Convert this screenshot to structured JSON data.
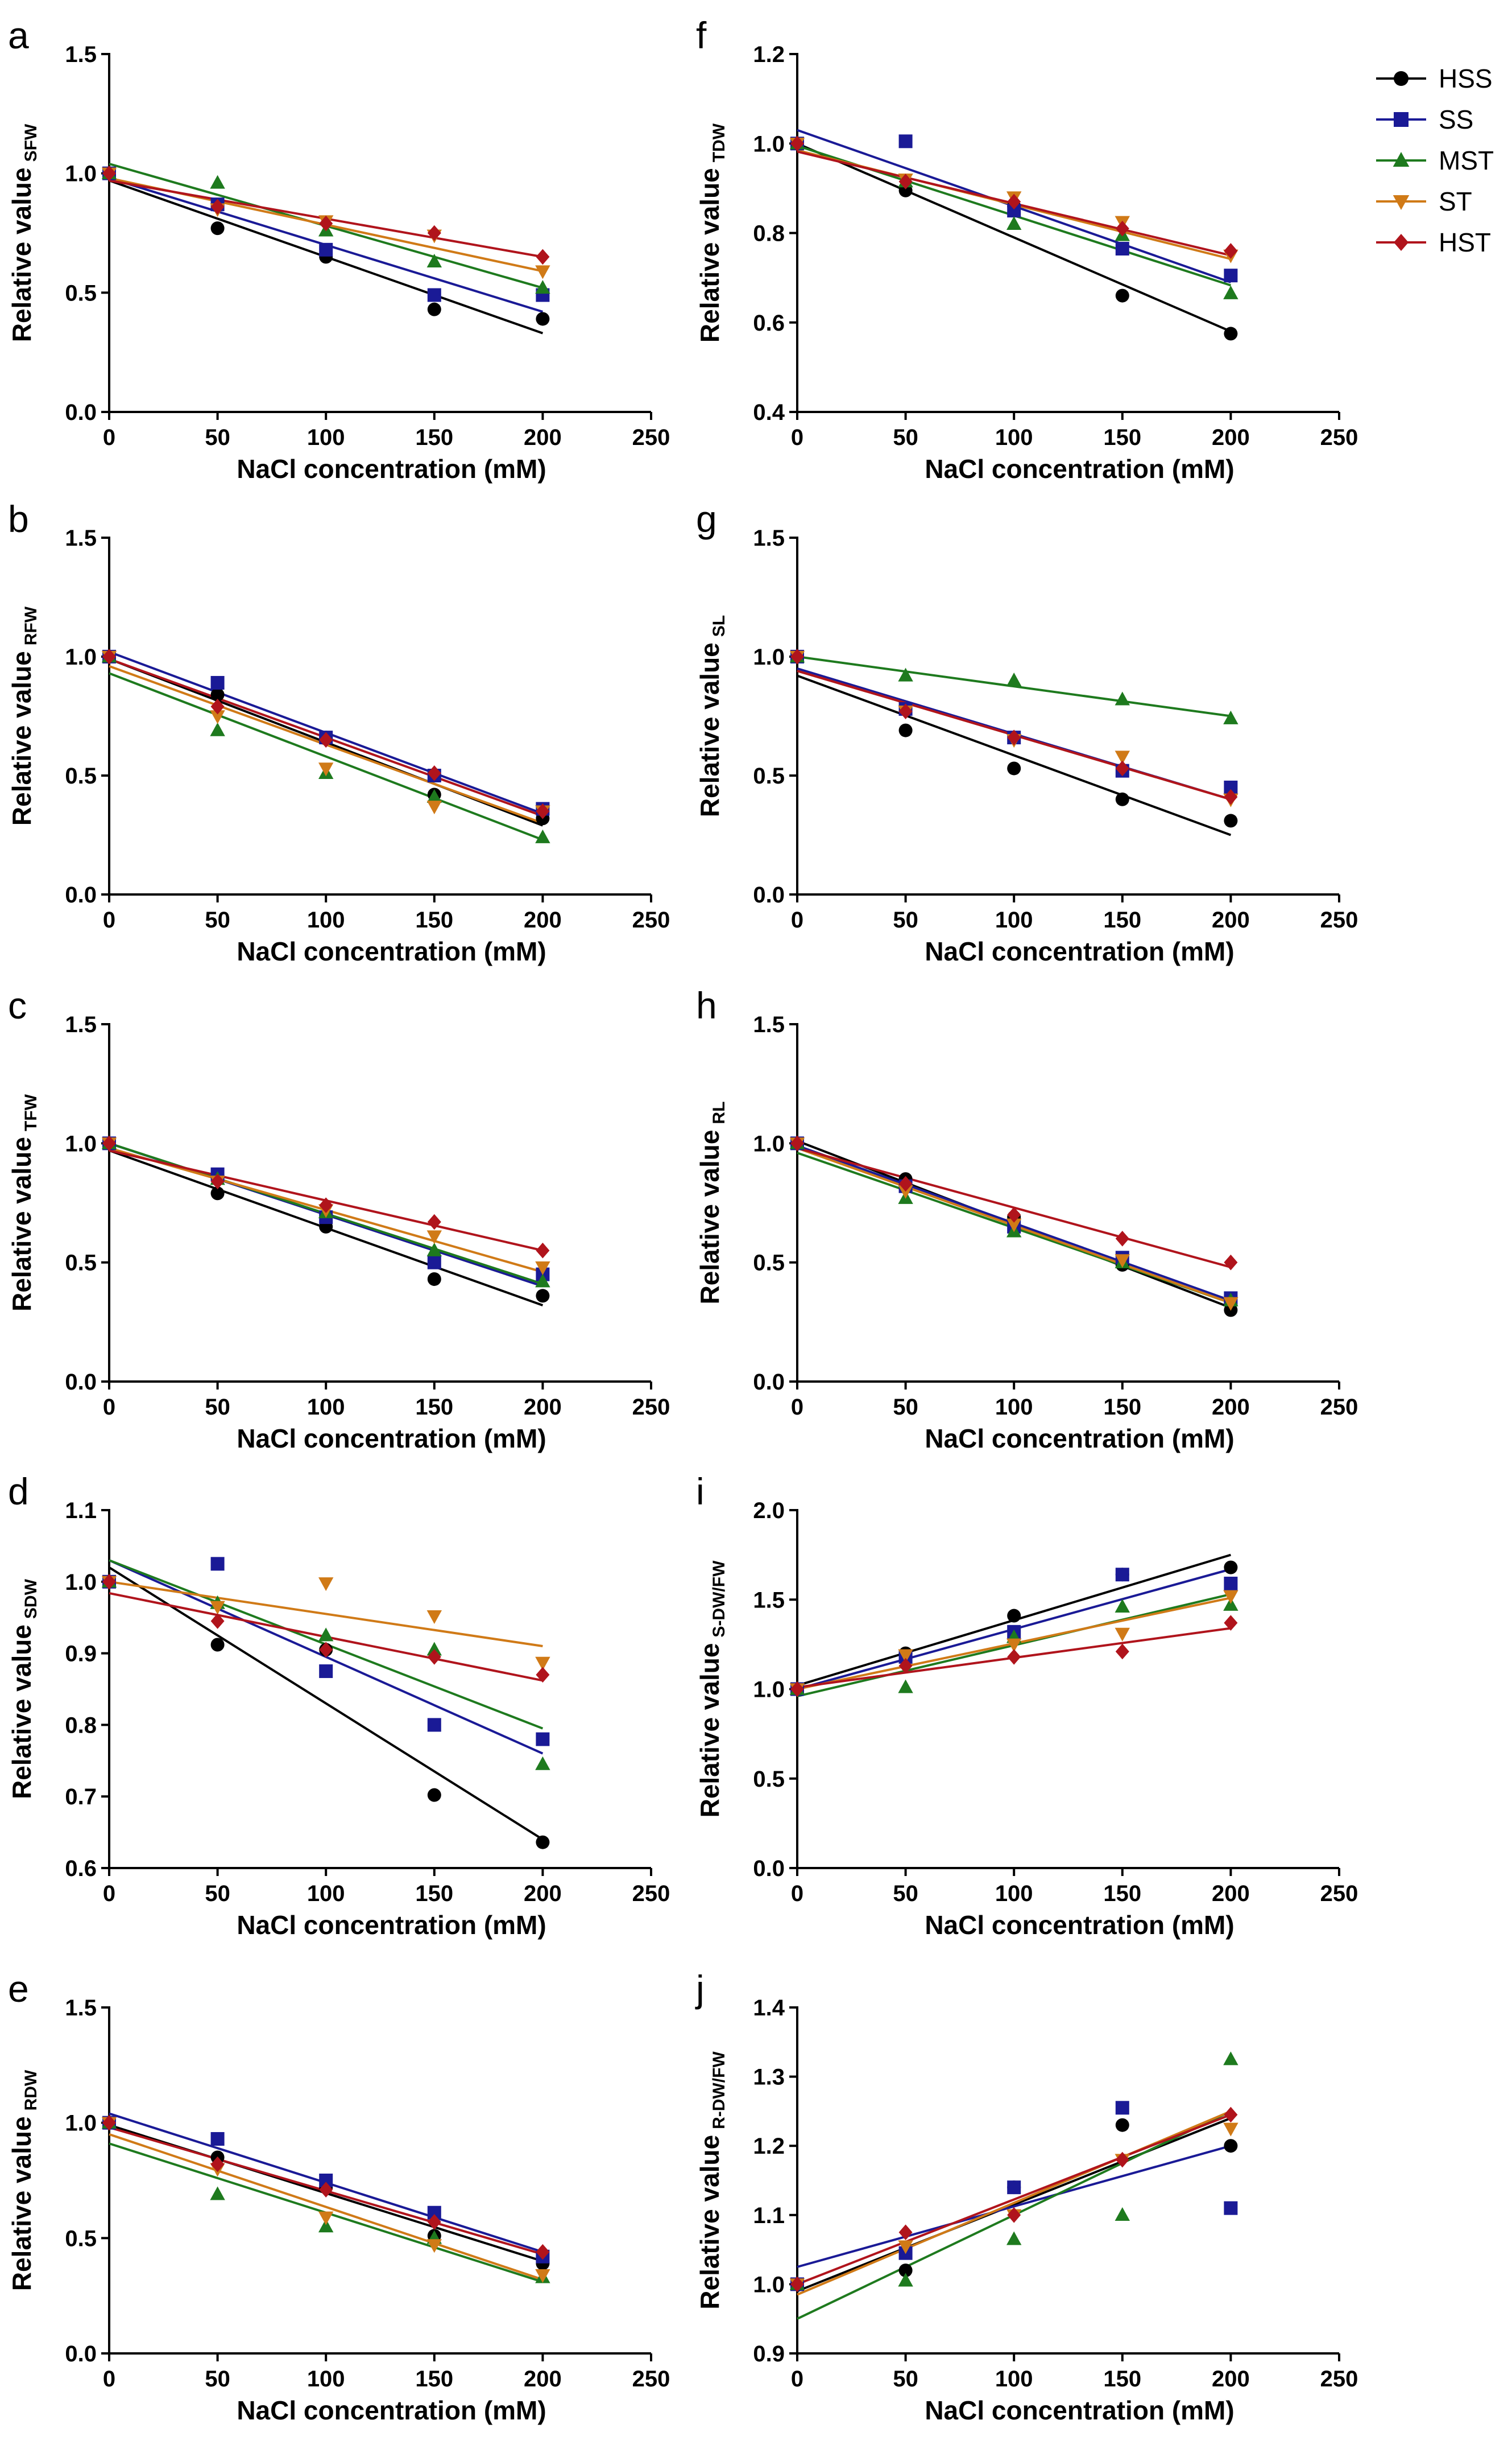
{
  "figure": {
    "legend_placement": "top-right"
  },
  "chart_data": [
    {
      "panel": "a",
      "type": "scatter",
      "ylabel": "Relative value",
      "ylabel_sub": "SFW",
      "xlabel": "NaCl concentration (mM)",
      "xlim": [
        0,
        250
      ],
      "xticks": [
        "0",
        "50",
        "100",
        "150",
        "200",
        "250"
      ],
      "ylim": [
        0,
        1.5
      ],
      "yticks": [
        "0.0",
        "0.5",
        "1.0",
        "1.5"
      ],
      "x": [
        0,
        50,
        100,
        150,
        200
      ],
      "series": [
        {
          "name": "HSS",
          "values": [
            1.0,
            0.77,
            0.65,
            0.43,
            0.39
          ],
          "fit": [
            0.97,
            0.33
          ]
        },
        {
          "name": "SS",
          "values": [
            1.0,
            0.87,
            0.68,
            0.49,
            0.49
          ],
          "fit": [
            0.98,
            0.42
          ]
        },
        {
          "name": "MST",
          "values": [
            1.0,
            0.96,
            0.76,
            0.63,
            0.52
          ],
          "fit": [
            1.04,
            0.52
          ]
        },
        {
          "name": "ST",
          "values": [
            1.0,
            0.85,
            0.8,
            0.74,
            0.59
          ],
          "fit": [
            0.98,
            0.59
          ]
        },
        {
          "name": "HST",
          "values": [
            1.0,
            0.86,
            0.79,
            0.75,
            0.65
          ],
          "fit": [
            0.97,
            0.65
          ]
        }
      ]
    },
    {
      "panel": "b",
      "type": "scatter",
      "ylabel": "Relative value",
      "ylabel_sub": "RFW",
      "xlabel": "NaCl concentration (mM)",
      "xlim": [
        0,
        250
      ],
      "xticks": [
        "0",
        "50",
        "100",
        "150",
        "200",
        "250"
      ],
      "ylim": [
        0,
        1.5
      ],
      "yticks": [
        "0.0",
        "0.5",
        "1.0",
        "1.5"
      ],
      "x": [
        0,
        50,
        100,
        150,
        200
      ],
      "series": [
        {
          "name": "HSS",
          "values": [
            1.0,
            0.84,
            0.66,
            0.42,
            0.32
          ],
          "fit": [
            0.99,
            0.29
          ]
        },
        {
          "name": "SS",
          "values": [
            1.0,
            0.89,
            0.66,
            0.5,
            0.36
          ],
          "fit": [
            1.02,
            0.34
          ]
        },
        {
          "name": "MST",
          "values": [
            1.0,
            0.69,
            0.51,
            0.41,
            0.24
          ],
          "fit": [
            0.93,
            0.23
          ]
        },
        {
          "name": "ST",
          "values": [
            1.0,
            0.75,
            0.53,
            0.37,
            0.35
          ],
          "fit": [
            0.96,
            0.3
          ]
        },
        {
          "name": "HST",
          "values": [
            1.0,
            0.79,
            0.65,
            0.51,
            0.35
          ],
          "fit": [
            0.99,
            0.33
          ]
        }
      ]
    },
    {
      "panel": "c",
      "type": "scatter",
      "ylabel": "Relative value",
      "ylabel_sub": "TFW",
      "xlabel": "NaCl concentration (mM)",
      "xlim": [
        0,
        250
      ],
      "xticks": [
        "0",
        "50",
        "100",
        "150",
        "200",
        "250"
      ],
      "ylim": [
        0,
        1.5
      ],
      "yticks": [
        "0.0",
        "0.5",
        "1.0",
        "1.5"
      ],
      "x": [
        0,
        50,
        100,
        150,
        200
      ],
      "series": [
        {
          "name": "HSS",
          "values": [
            1.0,
            0.79,
            0.65,
            0.43,
            0.36
          ],
          "fit": [
            0.97,
            0.32
          ]
        },
        {
          "name": "SS",
          "values": [
            1.0,
            0.87,
            0.69,
            0.5,
            0.45
          ],
          "fit": [
            1.0,
            0.4
          ]
        },
        {
          "name": "MST",
          "values": [
            1.0,
            0.85,
            0.71,
            0.55,
            0.42
          ],
          "fit": [
            1.0,
            0.41
          ]
        },
        {
          "name": "ST",
          "values": [
            1.0,
            0.84,
            0.72,
            0.61,
            0.48
          ],
          "fit": [
            0.98,
            0.46
          ]
        },
        {
          "name": "HST",
          "values": [
            1.0,
            0.84,
            0.74,
            0.67,
            0.55
          ],
          "fit": [
            0.97,
            0.55
          ]
        }
      ]
    },
    {
      "panel": "d",
      "type": "scatter",
      "ylabel": "Relative value",
      "ylabel_sub": "SDW",
      "xlabel": "NaCl concentration (mM)",
      "xlim": [
        0,
        250
      ],
      "xticks": [
        "0",
        "50",
        "100",
        "150",
        "200",
        "250"
      ],
      "ylim": [
        0.6,
        1.1
      ],
      "yticks": [
        "0.6",
        "0.7",
        "0.8",
        "0.9",
        "1.0",
        "1.1"
      ],
      "x": [
        0,
        50,
        100,
        150,
        200
      ],
      "series": [
        {
          "name": "HSS",
          "values": [
            1.0,
            0.912,
            0.905,
            0.702,
            0.636
          ],
          "fit": [
            1.02,
            0.64
          ]
        },
        {
          "name": "SS",
          "values": [
            1.0,
            1.025,
            0.875,
            0.8,
            0.78
          ],
          "fit": [
            1.03,
            0.76
          ]
        },
        {
          "name": "MST",
          "values": [
            1.0,
            0.97,
            0.925,
            0.905,
            0.745
          ],
          "fit": [
            1.03,
            0.795
          ]
        },
        {
          "name": "ST",
          "values": [
            1.0,
            0.965,
            0.998,
            0.952,
            0.887
          ],
          "fit": [
            1.0,
            0.91
          ]
        },
        {
          "name": "HST",
          "values": [
            1.0,
            0.945,
            0.905,
            0.895,
            0.87
          ],
          "fit": [
            0.984,
            0.862
          ]
        }
      ]
    },
    {
      "panel": "e",
      "type": "scatter",
      "ylabel": "Relative value",
      "ylabel_sub": "RDW",
      "xlabel": "NaCl concentration (mM)",
      "xlim": [
        0,
        250
      ],
      "xticks": [
        "0",
        "50",
        "100",
        "150",
        "200",
        "250"
      ],
      "ylim": [
        0,
        1.5
      ],
      "yticks": [
        "0.0",
        "0.5",
        "1.0",
        "1.5"
      ],
      "x": [
        0,
        50,
        100,
        150,
        200
      ],
      "series": [
        {
          "name": "HSS",
          "values": [
            1.0,
            0.85,
            0.72,
            0.51,
            0.39
          ],
          "fit": [
            0.99,
            0.4
          ]
        },
        {
          "name": "SS",
          "values": [
            1.0,
            0.93,
            0.75,
            0.61,
            0.42
          ],
          "fit": [
            1.04,
            0.44
          ]
        },
        {
          "name": "MST",
          "values": [
            1.0,
            0.69,
            0.55,
            0.5,
            0.33
          ],
          "fit": [
            0.91,
            0.31
          ]
        },
        {
          "name": "ST",
          "values": [
            1.0,
            0.8,
            0.59,
            0.47,
            0.34
          ],
          "fit": [
            0.95,
            0.32
          ]
        },
        {
          "name": "HST",
          "values": [
            1.0,
            0.82,
            0.71,
            0.57,
            0.44
          ],
          "fit": [
            0.98,
            0.43
          ]
        }
      ]
    },
    {
      "panel": "f",
      "type": "scatter",
      "ylabel": "Relative value",
      "ylabel_sub": "TDW",
      "xlabel": "NaCl concentration (mM)",
      "xlim": [
        0,
        250
      ],
      "xticks": [
        "0",
        "50",
        "100",
        "150",
        "200",
        "250"
      ],
      "ylim": [
        0.4,
        1.2
      ],
      "yticks": [
        "0.4",
        "0.6",
        "0.8",
        "1.0",
        "1.2"
      ],
      "x": [
        0,
        50,
        100,
        150,
        200
      ],
      "series": [
        {
          "name": "HSS",
          "values": [
            1.0,
            0.895,
            0.86,
            0.66,
            0.575
          ],
          "fit": [
            1.0,
            0.58
          ]
        },
        {
          "name": "SS",
          "values": [
            1.0,
            1.005,
            0.85,
            0.765,
            0.705
          ],
          "fit": [
            1.03,
            0.69
          ]
        },
        {
          "name": "MST",
          "values": [
            1.0,
            0.915,
            0.82,
            0.795,
            0.665
          ],
          "fit": [
            0.995,
            0.683
          ]
        },
        {
          "name": "ST",
          "values": [
            1.0,
            0.92,
            0.88,
            0.825,
            0.75
          ],
          "fit": [
            0.985,
            0.742
          ]
        },
        {
          "name": "HST",
          "values": [
            1.0,
            0.915,
            0.87,
            0.81,
            0.76
          ],
          "fit": [
            0.982,
            0.75
          ]
        }
      ]
    },
    {
      "panel": "g",
      "type": "scatter",
      "ylabel": "Relative value",
      "ylabel_sub": "SL",
      "xlabel": "NaCl concentration (mM)",
      "xlim": [
        0,
        250
      ],
      "xticks": [
        "0",
        "50",
        "100",
        "150",
        "200",
        "250"
      ],
      "ylim": [
        0,
        1.5
      ],
      "yticks": [
        "0.0",
        "0.5",
        "1.0",
        "1.5"
      ],
      "x": [
        0,
        50,
        100,
        150,
        200
      ],
      "series": [
        {
          "name": "HSS",
          "values": [
            1.0,
            0.69,
            0.53,
            0.4,
            0.31
          ],
          "fit": [
            0.92,
            0.25
          ]
        },
        {
          "name": "SS",
          "values": [
            1.0,
            0.78,
            0.66,
            0.52,
            0.45
          ],
          "fit": [
            0.95,
            0.4
          ]
        },
        {
          "name": "MST",
          "values": [
            1.0,
            0.92,
            0.9,
            0.82,
            0.74
          ],
          "fit": [
            1.0,
            0.75
          ]
        },
        {
          "name": "ST",
          "values": [
            1.0,
            0.77,
            0.65,
            0.58,
            0.4
          ],
          "fit": [
            0.94,
            0.4
          ]
        },
        {
          "name": "HST",
          "values": [
            1.0,
            0.77,
            0.66,
            0.53,
            0.41
          ],
          "fit": [
            0.94,
            0.4
          ]
        }
      ]
    },
    {
      "panel": "h",
      "type": "scatter",
      "ylabel": "Relative value",
      "ylabel_sub": "RL",
      "xlabel": "NaCl concentration (mM)",
      "xlim": [
        0,
        250
      ],
      "xticks": [
        "0",
        "50",
        "100",
        "150",
        "200",
        "250"
      ],
      "ylim": [
        0,
        1.5
      ],
      "yticks": [
        "0.0",
        "0.5",
        "1.0",
        "1.5"
      ],
      "x": [
        0,
        50,
        100,
        150,
        200
      ],
      "series": [
        {
          "name": "HSS",
          "values": [
            1.0,
            0.85,
            0.69,
            0.49,
            0.3
          ],
          "fit": [
            1.01,
            0.31
          ]
        },
        {
          "name": "SS",
          "values": [
            1.0,
            0.82,
            0.65,
            0.52,
            0.35
          ],
          "fit": [
            0.99,
            0.34
          ]
        },
        {
          "name": "MST",
          "values": [
            1.0,
            0.77,
            0.63,
            0.5,
            0.34
          ],
          "fit": [
            0.96,
            0.33
          ]
        },
        {
          "name": "ST",
          "values": [
            1.0,
            0.8,
            0.66,
            0.51,
            0.33
          ],
          "fit": [
            0.98,
            0.33
          ]
        },
        {
          "name": "HST",
          "values": [
            1.0,
            0.83,
            0.7,
            0.6,
            0.5
          ],
          "fit": [
            0.98,
            0.48
          ]
        }
      ]
    },
    {
      "panel": "i",
      "type": "scatter",
      "ylabel": "Relative value",
      "ylabel_sub": "S-DW/FW",
      "xlabel": "NaCl concentration (mM)",
      "xlim": [
        0,
        250
      ],
      "xticks": [
        "0",
        "50",
        "100",
        "150",
        "200",
        "250"
      ],
      "ylim": [
        0,
        2.0
      ],
      "yticks": [
        "0.0",
        "0.5",
        "1.0",
        "1.5",
        "2.0"
      ],
      "x": [
        0,
        50,
        100,
        150,
        200
      ],
      "series": [
        {
          "name": "HSS",
          "values": [
            1.0,
            1.2,
            1.41,
            1.64,
            1.68
          ],
          "fit": [
            1.02,
            1.75
          ]
        },
        {
          "name": "SS",
          "values": [
            1.0,
            1.18,
            1.32,
            1.64,
            1.59
          ],
          "fit": [
            1.0,
            1.67
          ]
        },
        {
          "name": "MST",
          "values": [
            1.0,
            1.01,
            1.29,
            1.46,
            1.47
          ],
          "fit": [
            0.96,
            1.53
          ]
        },
        {
          "name": "ST",
          "values": [
            1.0,
            1.19,
            1.25,
            1.31,
            1.52
          ],
          "fit": [
            1.0,
            1.51
          ]
        },
        {
          "name": "HST",
          "values": [
            1.0,
            1.13,
            1.18,
            1.21,
            1.37
          ],
          "fit": [
            1.01,
            1.34
          ]
        }
      ]
    },
    {
      "panel": "j",
      "type": "scatter",
      "ylabel": "Relative value",
      "ylabel_sub": "R-DW/FW",
      "xlabel": "NaCl concentration (mM)",
      "xlim": [
        0,
        250
      ],
      "xticks": [
        "0",
        "50",
        "100",
        "150",
        "200",
        "250"
      ],
      "ylim": [
        0.9,
        1.4
      ],
      "yticks": [
        "0.9",
        "1.0",
        "1.1",
        "1.2",
        "1.3",
        "1.4"
      ],
      "x": [
        0,
        50,
        100,
        150,
        200
      ],
      "series": [
        {
          "name": "HSS",
          "values": [
            1.0,
            1.02,
            1.14,
            1.23,
            1.2
          ],
          "fit": [
            0.99,
            1.24
          ]
        },
        {
          "name": "SS",
          "values": [
            1.0,
            1.045,
            1.14,
            1.255,
            1.11
          ],
          "fit": [
            1.025,
            1.2
          ]
        },
        {
          "name": "MST",
          "values": [
            1.0,
            1.005,
            1.065,
            1.1,
            1.325
          ],
          "fit": [
            0.95,
            1.25
          ]
        },
        {
          "name": "ST",
          "values": [
            1.0,
            1.055,
            1.1,
            1.18,
            1.225
          ],
          "fit": [
            0.985,
            1.25
          ]
        },
        {
          "name": "HST",
          "values": [
            1.0,
            1.075,
            1.1,
            1.18,
            1.245
          ],
          "fit": [
            1.0,
            1.245
          ]
        }
      ]
    }
  ],
  "legend": [
    {
      "name": "HSS",
      "color": "#000000",
      "marker": "circle"
    },
    {
      "name": "SS",
      "color": "#1a1a96",
      "marker": "square"
    },
    {
      "name": "MST",
      "color": "#1e7a1e",
      "marker": "triangle-up"
    },
    {
      "name": "ST",
      "color": "#d07a17",
      "marker": "triangle-down"
    },
    {
      "name": "HST",
      "color": "#b0141c",
      "marker": "diamond"
    }
  ]
}
